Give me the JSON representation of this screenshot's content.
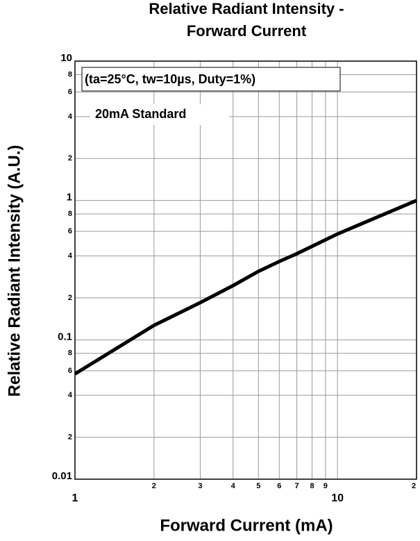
{
  "chart_data": {
    "type": "line",
    "title": [
      "Relative Radiant Intensity -",
      "Forward Current"
    ],
    "xlabel": "Forward Current (mA)",
    "ylabel": "Relative Radiant Intensity (A.U.)",
    "annotations": [
      "(ta=25°C, tw=10µs, Duty=1%)",
      "20mA Standard"
    ],
    "xscale": "log",
    "yscale": "log",
    "grid": true,
    "xlim": [
      1,
      20
    ],
    "ylim": [
      0.01,
      10
    ],
    "xticks": [
      1,
      2,
      3,
      4,
      5,
      6,
      7,
      8,
      9,
      10,
      {
        "value": 20,
        "label": "2"
      }
    ],
    "yticks": [
      0.01,
      {
        "value": 0.02,
        "label": "2"
      },
      {
        "value": 0.04,
        "label": "4"
      },
      {
        "value": 0.06,
        "label": "6"
      },
      {
        "value": 0.08,
        "label": "8"
      },
      0.1,
      {
        "value": 0.2,
        "label": "2"
      },
      {
        "value": 0.4,
        "label": "4"
      },
      {
        "value": 0.6,
        "label": "6"
      },
      {
        "value": 0.8,
        "label": "8"
      },
      1,
      2,
      4,
      6,
      8,
      10
    ],
    "x": [
      1,
      2,
      3,
      4,
      5,
      6,
      7,
      10,
      20
    ],
    "series": [
      {
        "color": "#000000",
        "values": [
          0.057,
          0.127,
          0.185,
          0.245,
          0.31,
          0.365,
          0.415,
          0.575,
          1.0
        ]
      }
    ]
  }
}
